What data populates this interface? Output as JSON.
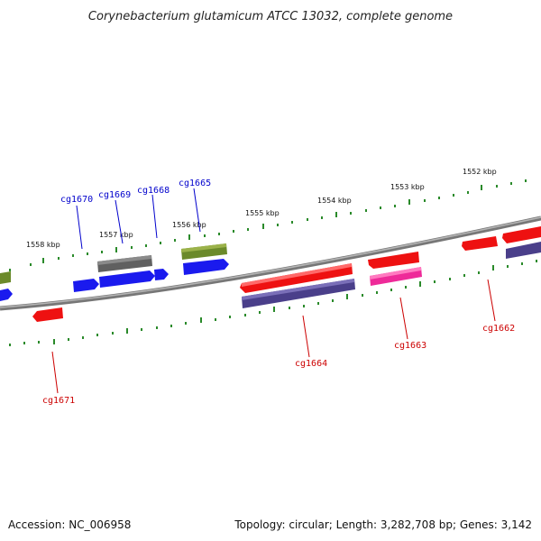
{
  "title": "Corynebacterium glutamicum ATCC 13032, complete genome",
  "accession": "Accession: NC_006958",
  "summary": "Topology: circular; Length: 3,282,708 bp; Genes: 3,142",
  "colors": {
    "backbone": "#808080",
    "tick": "#2a8a2a",
    "gene_red": "#ee1111",
    "gene_blue": "#1a1aee",
    "gene_olive": "#6b8a2a",
    "gene_gray": "#666666",
    "gene_purple": "#4a3f8a",
    "gene_pink": "#ee2a99",
    "label_blue": "#0000cc",
    "label_red": "#cc0000"
  },
  "ruler_labels": [
    "1552 kbp",
    "1553 kbp",
    "1554 kbp",
    "1555 kbp",
    "1556 kbp",
    "1557 kbp",
    "1558 kbp"
  ],
  "gene_labels": {
    "top": [
      "cg1670",
      "cg1669",
      "cg1668",
      "cg1665"
    ],
    "bottom": [
      "cg1671",
      "cg1664",
      "cg1663",
      "cg1662"
    ]
  }
}
